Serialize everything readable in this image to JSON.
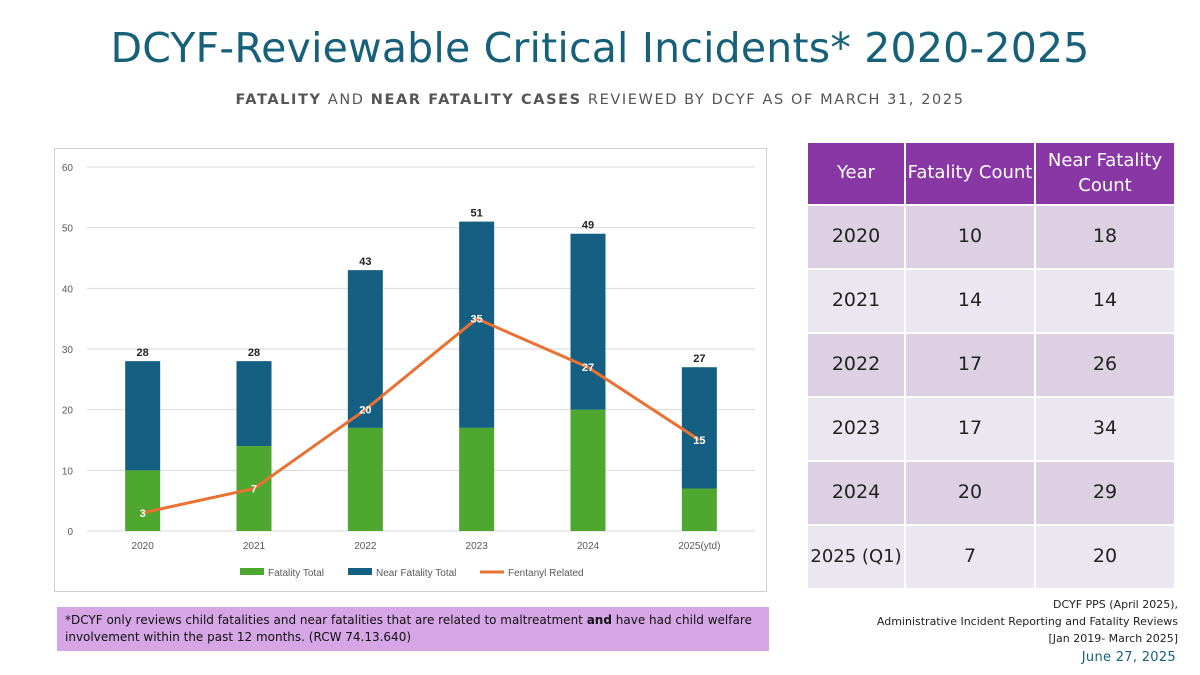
{
  "header": {
    "title": "DCYF-Reviewable Critical Incidents* 2020-2025",
    "subtitle_bold1": "FATALITY",
    "subtitle_mid1": " AND ",
    "subtitle_bold2": "NEAR FATALITY CASES",
    "subtitle_rest": " REVIEWED BY DCYF AS OF MARCH 31, 2025"
  },
  "chart_data": {
    "type": "bar",
    "stacked": true,
    "categories": [
      "2020",
      "2021",
      "2022",
      "2023",
      "2024",
      "2025(ytd)"
    ],
    "series": [
      {
        "name": "Fatality Total",
        "type": "bar",
        "color": "#4ea72e",
        "values": [
          10,
          14,
          17,
          17,
          20,
          7
        ]
      },
      {
        "name": "Near Fatality Total",
        "type": "bar",
        "color": "#156082",
        "values": [
          18,
          14,
          26,
          34,
          29,
          20
        ]
      },
      {
        "name": "Fentanyl Related",
        "type": "line",
        "color": "#e97132",
        "values": [
          3,
          7,
          20,
          35,
          27,
          15
        ]
      }
    ],
    "totals": [
      28,
      28,
      43,
      51,
      49,
      27
    ],
    "ylim": [
      0,
      60
    ],
    "yticks": [
      0,
      10,
      20,
      30,
      40,
      50,
      60
    ],
    "grid": true,
    "legend_position": "bottom"
  },
  "table": {
    "headers": [
      "Year",
      "Fatality Count",
      "Near Fatality Count"
    ],
    "rows": [
      [
        "2020",
        "10",
        "18"
      ],
      [
        "2021",
        "14",
        "14"
      ],
      [
        "2022",
        "17",
        "26"
      ],
      [
        "2023",
        "17",
        "34"
      ],
      [
        "2024",
        "20",
        "29"
      ],
      [
        "2025 (Q1)",
        "7",
        "20"
      ]
    ]
  },
  "footnote": {
    "part1": "*DCYF only reviews child fatalities and near fatalities that are related to maltreatment ",
    "bold": "and",
    "part2": " have had child welfare involvement within the past 12 months. (RCW 74.13.640)"
  },
  "source": {
    "line1": "DCYF PPS (April 2025),",
    "line2": "Administrative Incident Reporting and Fatality Reviews",
    "line3": "[Jan 2019- March 2025]"
  },
  "date": "June 27, 2025"
}
